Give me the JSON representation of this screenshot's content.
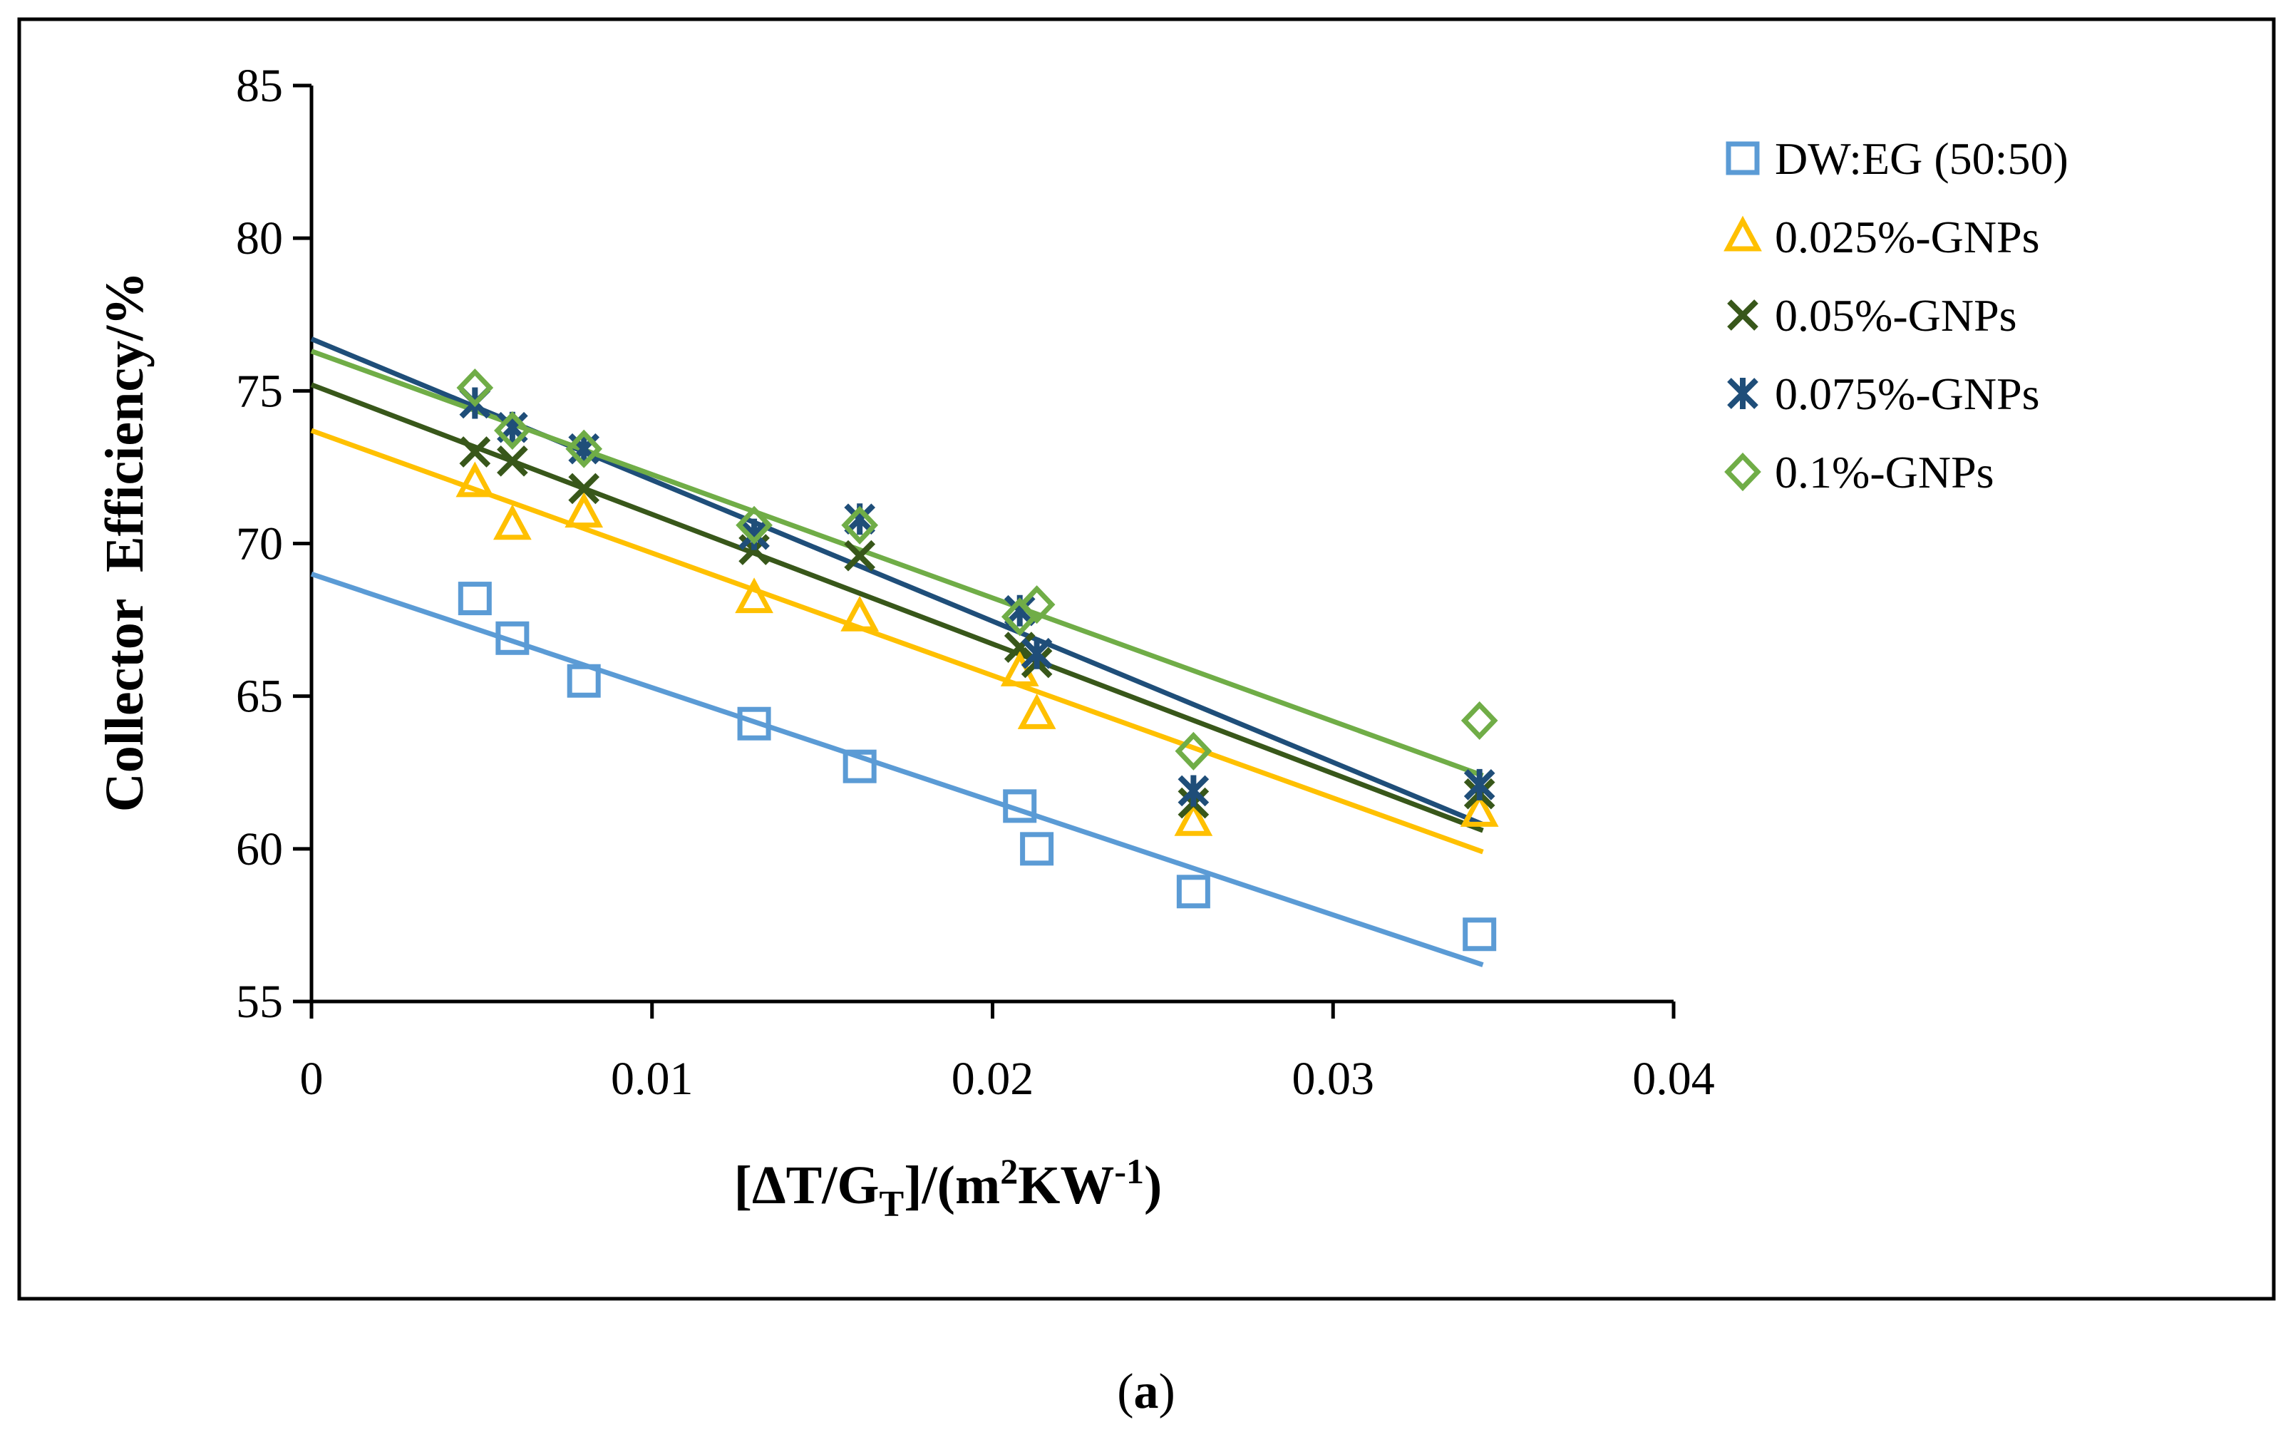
{
  "chart_data": {
    "type": "scatter",
    "title": "",
    "xlabel": "[ΔT/GT]/(m2KW-1)",
    "xlabel_parts": {
      "open": "[ΔT/G",
      "sub": "T",
      "mid": "]/(m",
      "sup1": "2",
      "kw": "KW",
      "sup2": "-1",
      "close": ")"
    },
    "ylabel": "Collector  Efficiency/%",
    "xlim": [
      0,
      0.04
    ],
    "ylim": [
      55,
      85
    ],
    "xticks": [
      0,
      0.01,
      0.02,
      0.03,
      0.04
    ],
    "xtick_labels": [
      "0",
      "0.01",
      "0.02",
      "0.03",
      "0.04"
    ],
    "yticks": [
      55,
      60,
      65,
      70,
      75,
      80,
      85
    ],
    "ytick_labels": [
      "55",
      "60",
      "65",
      "70",
      "75",
      "80",
      "85"
    ],
    "grid": false,
    "legend_position": "right",
    "caption": {
      "paren_open": "(",
      "letter": "a",
      "paren_close": ")"
    },
    "series": [
      {
        "name": "DW:EG (50:50)",
        "marker": "square",
        "color": "#5B9BD5",
        "x": [
          0.0048,
          0.0059,
          0.008,
          0.013,
          0.0161,
          0.0208,
          0.0213,
          0.0259,
          0.0343
        ],
        "y": [
          68.2,
          66.9,
          65.5,
          64.1,
          62.7,
          61.4,
          60.0,
          58.6,
          57.2
        ],
        "trendline": {
          "x": [
            0,
            0.0344
          ],
          "y": [
            69.0,
            56.2
          ]
        }
      },
      {
        "name": "0.025%-GNPs",
        "marker": "triangle",
        "color": "#FFC000",
        "x": [
          0.0048,
          0.0059,
          0.008,
          0.013,
          0.0161,
          0.0208,
          0.0213,
          0.0259,
          0.0343
        ],
        "y": [
          72.0,
          70.6,
          71.0,
          68.2,
          67.6,
          65.8,
          64.4,
          60.9,
          61.2
        ],
        "trendline": {
          "x": [
            0,
            0.0344
          ],
          "y": [
            73.7,
            59.9
          ]
        }
      },
      {
        "name": "0.05%-GNPs",
        "marker": "x",
        "color": "#38571A",
        "x": [
          0.0048,
          0.0059,
          0.008,
          0.013,
          0.0161,
          0.0208,
          0.0213,
          0.0259,
          0.0343
        ],
        "y": [
          73.0,
          72.7,
          71.8,
          69.8,
          69.6,
          66.6,
          66.1,
          61.5,
          61.8
        ],
        "trendline": {
          "x": [
            0,
            0.0344
          ],
          "y": [
            75.2,
            60.6
          ]
        }
      },
      {
        "name": "0.075%-GNPs",
        "marker": "star",
        "color": "#1F4E79",
        "x": [
          0.0048,
          0.0059,
          0.008,
          0.013,
          0.0161,
          0.0208,
          0.0213,
          0.0259,
          0.0343
        ],
        "y": [
          74.6,
          73.8,
          73.1,
          70.3,
          70.8,
          67.8,
          66.4,
          61.9,
          62.1
        ],
        "trendline": {
          "x": [
            0,
            0.0344
          ],
          "y": [
            76.7,
            60.8
          ]
        }
      },
      {
        "name": "0.1%-GNPs",
        "marker": "diamond",
        "color": "#70AD47",
        "x": [
          0.0048,
          0.0059,
          0.008,
          0.013,
          0.0161,
          0.0208,
          0.0213,
          0.0259,
          0.0343
        ],
        "y": [
          75.1,
          73.7,
          73.1,
          70.6,
          70.6,
          67.6,
          68.0,
          63.2,
          64.2
        ],
        "trendline": {
          "x": [
            0,
            0.0344
          ],
          "y": [
            76.3,
            62.4
          ]
        }
      }
    ]
  }
}
